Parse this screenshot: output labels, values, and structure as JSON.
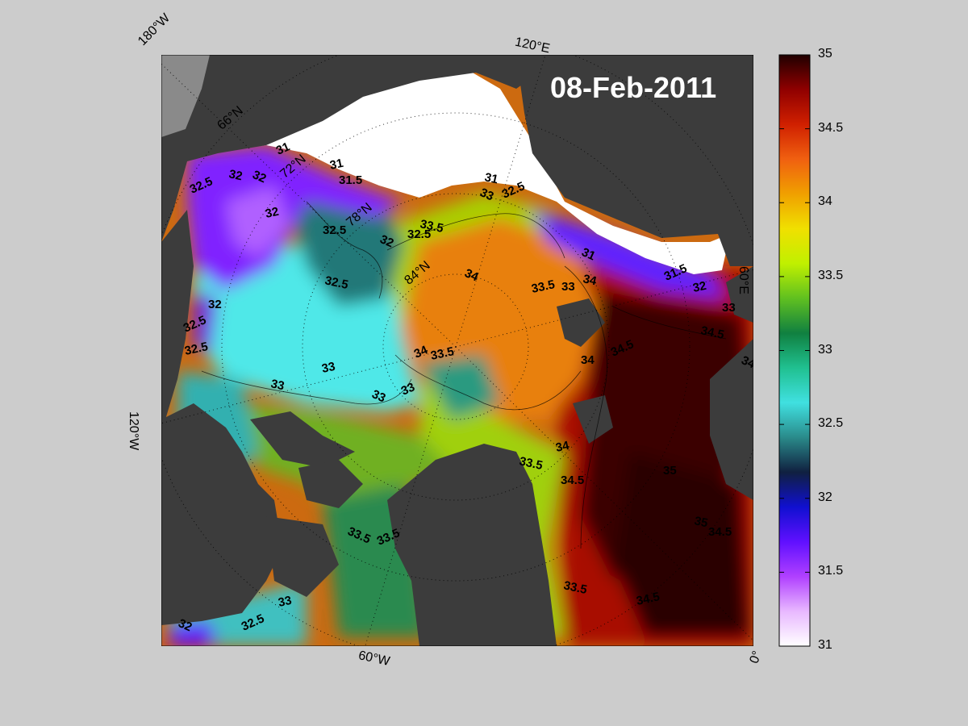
{
  "map": {
    "date_label": "08-Feb-2011",
    "edge_labels": [
      "180°W",
      "120°E",
      "60°E",
      "0°",
      "60°W",
      "120°W"
    ],
    "grid_labels": [
      "66°N",
      "72°N",
      "78°N",
      "84°N"
    ],
    "contour_labels": [
      "31",
      "31",
      "31.5",
      "32",
      "32",
      "32.5",
      "32",
      "32.5",
      "32.5",
      "32",
      "32.5",
      "32.5",
      "32",
      "33",
      "33",
      "33",
      "33",
      "32.5",
      "33.5",
      "34",
      "34",
      "33.5",
      "34",
      "31",
      "33",
      "32.5",
      "33.5",
      "33",
      "34",
      "31",
      "31.5",
      "32",
      "33",
      "34.5",
      "34",
      "34.5",
      "34",
      "34.5",
      "33.5",
      "33.5",
      "33.5",
      "34.5",
      "34.5",
      "33.5",
      "32",
      "32.5",
      "33",
      "35",
      "35"
    ],
    "colors": {
      "land": "#3c3c3c",
      "ice": "#ffffff",
      "background": "#cccccc",
      "frame": "#000000"
    }
  },
  "colorbar": {
    "min": 31,
    "max": 35,
    "ticks": [
      "35",
      "34.5",
      "34",
      "33.5",
      "33",
      "32.5",
      "32",
      "31.5",
      "31"
    ],
    "colormap": [
      "#ffffff",
      "#e8b8ff",
      "#b040ff",
      "#6010ff",
      "#1010d0",
      "#102040",
      "#2a8a8a",
      "#40e0e0",
      "#20c090",
      "#108040",
      "#60c020",
      "#c0f000",
      "#f0e000",
      "#f0a000",
      "#f06010",
      "#d02000",
      "#900000",
      "#200000"
    ]
  }
}
